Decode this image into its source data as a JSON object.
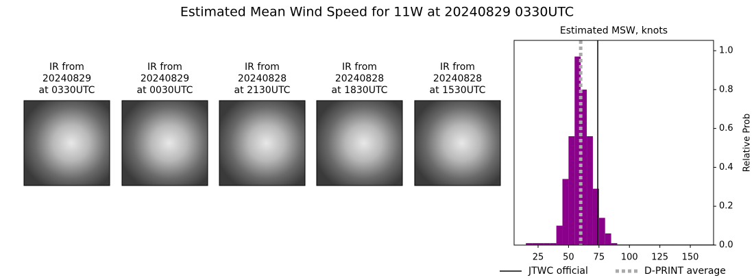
{
  "title": "Estimated Mean Wind Speed for 11W at 20240829 0330UTC",
  "panels": [
    {
      "lines": [
        "IR from",
        "20240829",
        "at 0330UTC"
      ]
    },
    {
      "lines": [
        "IR from",
        "20240829",
        "at 0030UTC"
      ]
    },
    {
      "lines": [
        "IR from",
        "20240828",
        "at 2130UTC"
      ]
    },
    {
      "lines": [
        "IR from",
        "20240828",
        "at 1830UTC"
      ]
    },
    {
      "lines": [
        "IR from",
        "20240828",
        "at 1530UTC"
      ]
    }
  ],
  "chart_data": {
    "type": "histogram",
    "title": "Estimated MSW, knots",
    "y_label": "Relative Prob",
    "color": "#8b008b",
    "bins": [
      15,
      20,
      25,
      30,
      35,
      40,
      45,
      50,
      55,
      60,
      65,
      70,
      75,
      80,
      85,
      90,
      95,
      100,
      105,
      110,
      115,
      120,
      125,
      130,
      135,
      140,
      145,
      150,
      155,
      160,
      165,
      170
    ],
    "values": [
      0.01,
      0.01,
      0.01,
      0.01,
      0.01,
      0.1,
      0.34,
      0.56,
      0.97,
      0.8,
      0.56,
      0.29,
      0.14,
      0.06,
      0.01,
      0.003,
      0.003,
      0.003,
      0.003,
      0.003,
      0.003,
      0.003,
      0.003,
      0.003,
      0.003,
      0.003,
      0.003,
      0.003,
      0.003,
      0.003,
      0.003
    ],
    "lines": [
      {
        "name": "JTWC official",
        "value": 74,
        "color": "#000000",
        "dash": false
      },
      {
        "name": "D-PRINT average",
        "value": 60,
        "color": "#aaaaaa",
        "dash": true
      }
    ],
    "xlim": [
      5.3,
      169.1
    ],
    "ylim": [
      0,
      1.053
    ],
    "xticks": [
      25,
      50,
      75,
      100,
      125,
      150
    ],
    "yticks": [
      {
        "value": 0,
        "label": "0.0"
      },
      {
        "value": 0.2,
        "label": "0.2"
      },
      {
        "value": 0.4,
        "label": "0.4"
      },
      {
        "value": 0.6,
        "label": "0.6"
      },
      {
        "value": 0.8,
        "label": "0.8"
      },
      {
        "value": 1.0,
        "label": "1.0"
      }
    ]
  }
}
